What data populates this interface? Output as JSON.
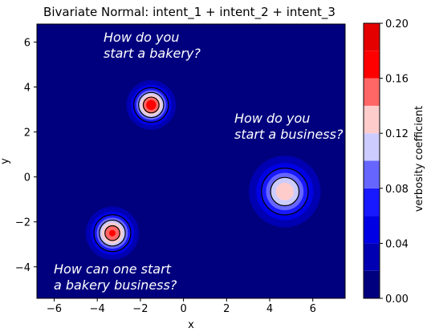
{
  "chart_data": {
    "type": "heatmap",
    "title": "Bivariate Normal: intent_1 + intent_2 + intent_3",
    "xlabel": "x",
    "ylabel": "y",
    "xlim": [
      -6.8,
      7.5
    ],
    "ylim": [
      -5.4,
      6.8
    ],
    "xticks": [
      -6,
      -4,
      -2,
      0,
      2,
      4,
      6
    ],
    "yticks": [
      -4,
      -2,
      0,
      2,
      4,
      6
    ],
    "colorbar": {
      "label": "verbosity coefficient",
      "range": [
        0,
        0.2
      ],
      "ticks": [
        "0.00",
        "0.04",
        "0.08",
        "0.12",
        "0.16",
        "0.20"
      ],
      "levels": [
        0,
        0.02,
        0.04,
        0.06,
        0.08,
        0.1,
        0.12,
        0.14,
        0.16,
        0.18,
        0.2
      ],
      "colors": [
        "#00007f",
        "#0000b2",
        "#0000e5",
        "#1919ff",
        "#6666ff",
        "#ccccff",
        "#ffcccc",
        "#ff6666",
        "#ff0000",
        "#e50000",
        "#7f0000"
      ]
    },
    "series": [
      {
        "name": "intent_1",
        "mean": [
          -1.5,
          3.2
        ],
        "sigma": 0.55,
        "peak": 0.175,
        "annotation": [
          "How do you",
          "start a bakery?"
        ]
      },
      {
        "name": "intent_2",
        "mean": [
          4.7,
          -0.65
        ],
        "sigma": 0.85,
        "peak": 0.135,
        "annotation": [
          "How do you",
          "start a business?"
        ]
      },
      {
        "name": "intent_3",
        "mean": [
          -3.3,
          -2.5
        ],
        "sigma": 0.6,
        "peak": 0.165,
        "annotation": [
          "How can one start",
          "a bakery business?"
        ]
      }
    ],
    "contour_lines": [
      0.06,
      0.1,
      0.14
    ]
  }
}
